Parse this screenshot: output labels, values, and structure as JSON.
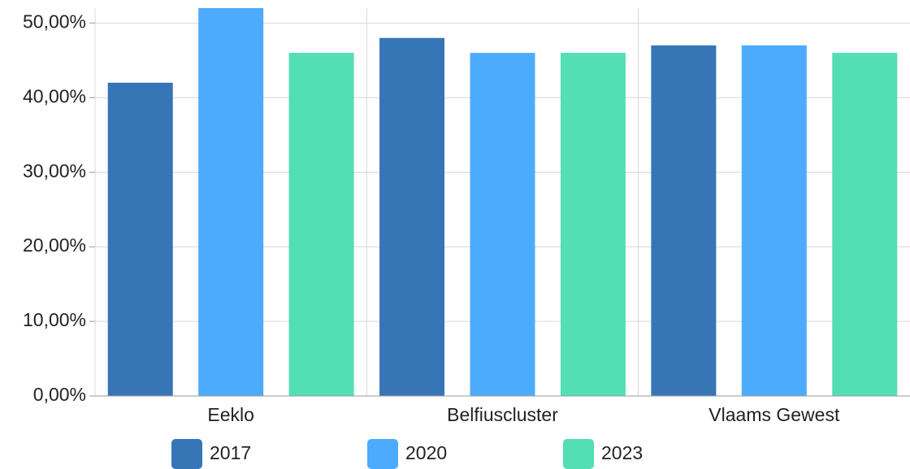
{
  "chart_data": {
    "type": "bar",
    "categories": [
      "Eeklo",
      "Belfiuscluster",
      "Vlaams Gewest"
    ],
    "series": [
      {
        "name": "2017",
        "color": "#3776b6",
        "values": [
          42,
          48,
          47
        ]
      },
      {
        "name": "2020",
        "color": "#4dabfd",
        "values": [
          52,
          46,
          47
        ]
      },
      {
        "name": "2023",
        "color": "#53deb4",
        "values": [
          46,
          46,
          46
        ]
      }
    ],
    "ylim": [
      0,
      52
    ],
    "yticks": [
      {
        "value": 0,
        "label": "0,00%"
      },
      {
        "value": 10,
        "label": "10,00%"
      },
      {
        "value": 20,
        "label": "20,00%"
      },
      {
        "value": 30,
        "label": "30,00%"
      },
      {
        "value": 40,
        "label": "40,00%"
      },
      {
        "value": 50,
        "label": "50,00%"
      }
    ],
    "grid": true
  }
}
